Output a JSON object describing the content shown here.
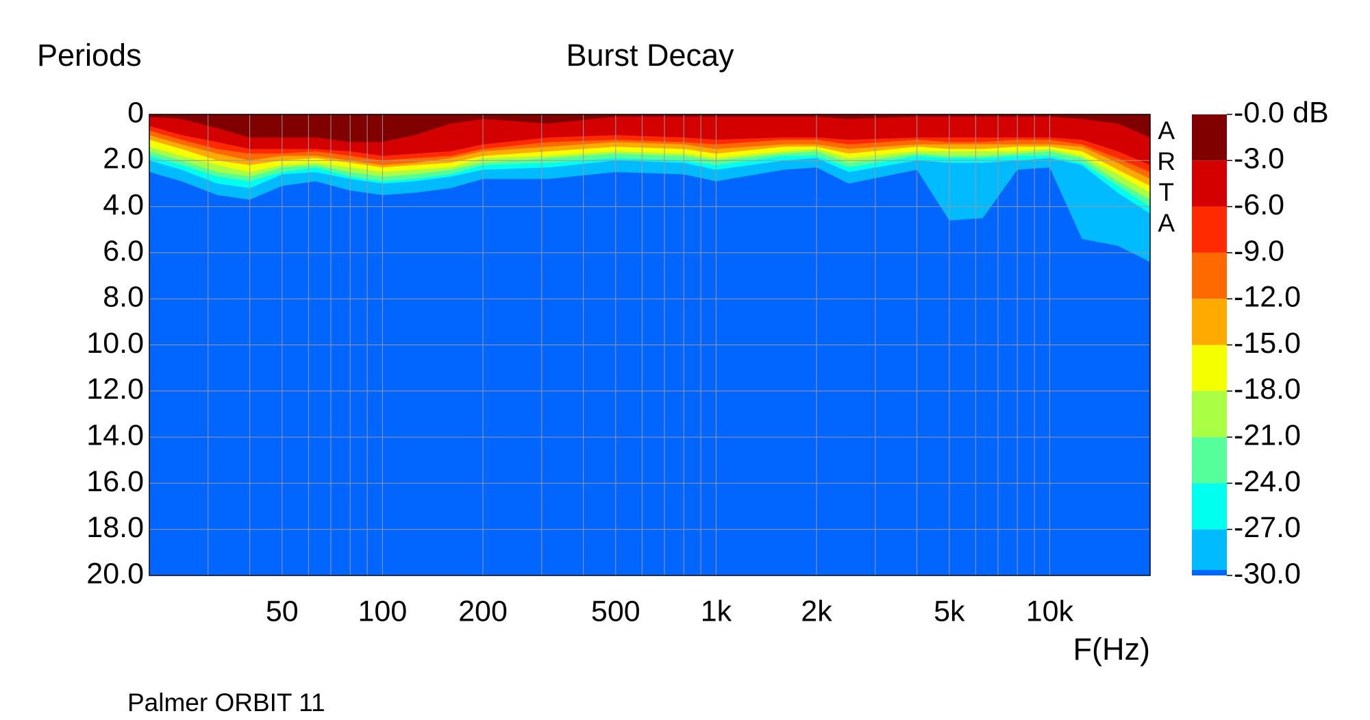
{
  "chart_data": {
    "type": "heatmap",
    "title": "Burst Decay",
    "ylabel": "Periods",
    "xlabel": "F(Hz)",
    "footer": "Palmer ORBIT 11",
    "watermark": "ARTA",
    "xlog": true,
    "grid": true,
    "xlim": [
      20,
      20000
    ],
    "ylim": [
      0,
      20
    ],
    "xticks": [
      50,
      100,
      200,
      500,
      {
        "value": 1000,
        "label": "1k"
      },
      {
        "value": 2000,
        "label": "2k"
      },
      {
        "value": 5000,
        "label": "5k"
      },
      {
        "value": 10000,
        "label": "10k"
      }
    ],
    "yticks": [
      0,
      {
        "value": 2,
        "label": "2.0"
      },
      {
        "value": 4,
        "label": "4.0"
      },
      {
        "value": 6,
        "label": "6.0"
      },
      {
        "value": 8,
        "label": "8.0"
      },
      {
        "value": 10,
        "label": "10.0"
      },
      {
        "value": 12,
        "label": "12.0"
      },
      {
        "value": 14,
        "label": "14.0"
      },
      {
        "value": 16,
        "label": "16.0"
      },
      {
        "value": 18,
        "label": "18.0"
      },
      {
        "value": 20,
        "label": "20.0"
      }
    ],
    "zlim": [
      0,
      -30
    ],
    "zticks": [
      {
        "value": 0,
        "label": "-0.0 dB"
      },
      {
        "value": -3,
        "label": "-3.0"
      },
      {
        "value": -6,
        "label": "-6.0"
      },
      {
        "value": -9,
        "label": "-9.0"
      },
      {
        "value": -12,
        "label": "-12.0"
      },
      {
        "value": -15,
        "label": "-15.0"
      },
      {
        "value": -18,
        "label": "-18.0"
      },
      {
        "value": -21,
        "label": "-21.0"
      },
      {
        "value": -24,
        "label": "-24.0"
      },
      {
        "value": -27,
        "label": "-27.0"
      },
      {
        "value": -30,
        "label": "-30.0"
      }
    ],
    "below_color": "#0066ff",
    "x": [
      20,
      25,
      32,
      40,
      50,
      63,
      80,
      100,
      125,
      160,
      200,
      315,
      500,
      800,
      1000,
      1600,
      2000,
      2500,
      4000,
      5000,
      6300,
      8000,
      10000,
      12500,
      16000,
      20000
    ],
    "levels": [
      {
        "color": "#800000",
        "values": [
          0.1,
          0.2,
          0.6,
          1.0,
          1.0,
          1.0,
          1.2,
          1.2,
          0.9,
          0.4,
          0.2,
          0.4,
          0.1,
          0.1,
          0.1,
          0.1,
          0.1,
          0.2,
          0.1,
          0.1,
          0.1,
          0.1,
          0.1,
          0.2,
          0.4,
          1.0
        ]
      },
      {
        "color": "#d40000",
        "values": [
          0.5,
          0.9,
          1.2,
          1.5,
          1.5,
          1.5,
          1.6,
          1.8,
          1.7,
          1.6,
          1.3,
          1.0,
          0.9,
          1.0,
          1.1,
          1.0,
          1.0,
          1.1,
          1.0,
          1.0,
          1.0,
          1.0,
          1.0,
          1.1,
          1.6,
          2.2
        ]
      },
      {
        "color": "#ff2a00",
        "values": [
          0.7,
          1.1,
          1.5,
          1.7,
          1.7,
          1.6,
          1.8,
          2.0,
          1.9,
          1.8,
          1.5,
          1.2,
          1.1,
          1.2,
          1.3,
          1.1,
          1.1,
          1.3,
          1.1,
          1.2,
          1.2,
          1.1,
          1.1,
          1.3,
          1.9,
          2.5
        ]
      },
      {
        "color": "#ff6a00",
        "values": [
          0.9,
          1.3,
          1.7,
          2.0,
          1.8,
          1.8,
          2.0,
          2.2,
          2.1,
          1.9,
          1.6,
          1.4,
          1.2,
          1.3,
          1.5,
          1.3,
          1.3,
          1.5,
          1.3,
          1.3,
          1.3,
          1.3,
          1.3,
          1.4,
          2.1,
          2.8
        ]
      },
      {
        "color": "#ffaa00",
        "values": [
          1.1,
          1.5,
          2.0,
          2.2,
          2.0,
          1.9,
          2.1,
          2.3,
          2.2,
          2.1,
          1.8,
          1.6,
          1.4,
          1.5,
          1.7,
          1.4,
          1.4,
          1.7,
          1.4,
          1.5,
          1.5,
          1.4,
          1.4,
          1.6,
          2.4,
          3.1
        ]
      },
      {
        "color": "#f5ff00",
        "values": [
          1.4,
          1.8,
          2.2,
          2.5,
          2.2,
          2.1,
          2.3,
          2.5,
          2.4,
          2.3,
          1.9,
          1.8,
          1.6,
          1.7,
          1.9,
          1.6,
          1.5,
          1.9,
          1.6,
          1.6,
          1.6,
          1.6,
          1.5,
          1.8,
          2.6,
          3.4
        ]
      },
      {
        "color": "#aaff44",
        "values": [
          1.6,
          2.0,
          2.5,
          2.7,
          2.3,
          2.2,
          2.5,
          2.7,
          2.6,
          2.4,
          2.1,
          1.9,
          1.7,
          1.8,
          2.0,
          1.7,
          1.6,
          2.1,
          1.7,
          1.8,
          1.8,
          1.7,
          1.6,
          1.9,
          2.9,
          3.7
        ]
      },
      {
        "color": "#55ff99",
        "values": [
          1.8,
          2.2,
          2.7,
          2.9,
          2.5,
          2.3,
          2.7,
          2.9,
          2.8,
          2.6,
          2.2,
          2.1,
          1.9,
          2.0,
          2.2,
          1.8,
          1.8,
          2.3,
          1.8,
          1.9,
          1.9,
          1.8,
          1.8,
          2.1,
          3.1,
          4.0
        ]
      },
      {
        "color": "#00ffee",
        "values": [
          2.0,
          2.4,
          3.0,
          3.2,
          2.6,
          2.5,
          2.8,
          3.0,
          2.9,
          2.7,
          2.4,
          2.3,
          2.0,
          2.1,
          2.4,
          2.0,
          1.9,
          2.5,
          2.0,
          2.1,
          2.1,
          2.0,
          1.9,
          2.2,
          3.4,
          4.3
        ]
      },
      {
        "color": "#00bbff",
        "values": [
          2.5,
          2.9,
          3.5,
          3.7,
          3.1,
          2.9,
          3.3,
          3.5,
          3.4,
          3.2,
          2.8,
          2.8,
          2.5,
          2.6,
          2.9,
          2.4,
          2.3,
          3.0,
          2.4,
          4.6,
          4.5,
          2.4,
          2.3,
          5.4,
          5.7,
          6.4
        ]
      }
    ]
  }
}
